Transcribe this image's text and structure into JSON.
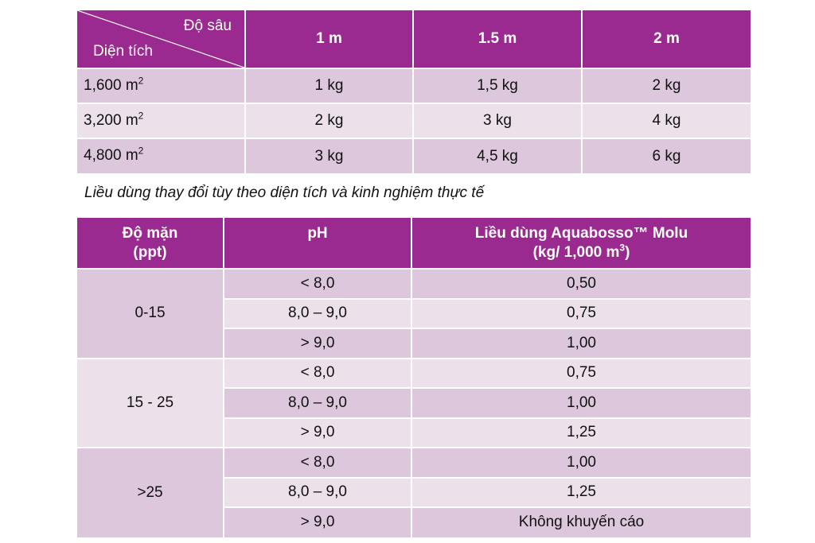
{
  "table1": {
    "header_depth": "Độ sâu",
    "header_area": "Diện tích",
    "columns": [
      "1 m",
      "1.5 m",
      "2 m"
    ],
    "area_unit": "m",
    "area_unit_exp": "2",
    "rows": [
      {
        "area": "1,600",
        "values": [
          "1 kg",
          "1,5 kg",
          "2 kg"
        ]
      },
      {
        "area": "3,200",
        "values": [
          "2 kg",
          "3 kg",
          "4 kg"
        ]
      },
      {
        "area": "4,800",
        "values": [
          "3 kg",
          "4,5 kg",
          "6 kg"
        ]
      }
    ]
  },
  "note": "Liều dùng thay đổi tùy theo diện tích và kinh nghiệm thực tế",
  "table2": {
    "header_salinity_line1": "Độ mặn",
    "header_salinity_line2": "(ppt)",
    "header_ph": "pH",
    "header_dose_line1": "Liều dùng Aquabosso™ Molu",
    "header_dose_line2_pre": "(kg/ 1,000 m",
    "header_dose_line2_exp": "3",
    "header_dose_line2_post": ")",
    "groups": [
      {
        "salinity": "0-15",
        "rows": [
          {
            "ph": "< 8,0",
            "dose": "0,50"
          },
          {
            "ph": "8,0 – 9,0",
            "dose": "0,75"
          },
          {
            "ph": "> 9,0",
            "dose": "1,00"
          }
        ]
      },
      {
        "salinity": "15 - 25",
        "rows": [
          {
            "ph": "< 8,0",
            "dose": "0,75"
          },
          {
            "ph": "8,0 – 9,0",
            "dose": "1,00"
          },
          {
            "ph": "> 9,0",
            "dose": "1,25"
          }
        ]
      },
      {
        "salinity": ">25",
        "rows": [
          {
            "ph": "< 8,0",
            "dose": "1,00"
          },
          {
            "ph": "8,0 – 9,0",
            "dose": "1,25"
          },
          {
            "ph": "> 9,0",
            "dose": "Không khuyến cáo"
          }
        ]
      }
    ]
  }
}
